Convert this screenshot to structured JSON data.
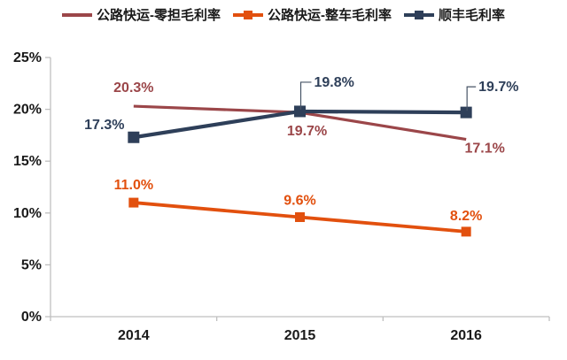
{
  "legend": {
    "items": [
      {
        "label": "公路快运-零担毛利率",
        "color": "#9B4649",
        "marker": "line"
      },
      {
        "label": "公路快运-整车毛利率",
        "color": "#E2500E",
        "marker": "square"
      },
      {
        "label": "顺丰毛利率",
        "color": "#2E3F59",
        "marker": "square"
      }
    ]
  },
  "chart_data": {
    "type": "line",
    "categories": [
      "2014",
      "2015",
      "2016"
    ],
    "series": [
      {
        "name": "公路快运-零担毛利率",
        "values": [
          20.3,
          19.7,
          17.1
        ],
        "point_labels": [
          "20.3%",
          "19.7%",
          "17.1%"
        ],
        "color": "#9B4649",
        "marker": "none"
      },
      {
        "name": "公路快运-整车毛利率",
        "values": [
          11.0,
          9.6,
          8.2
        ],
        "point_labels": [
          "11.0%",
          "9.6%",
          "8.2%"
        ],
        "color": "#E2500E",
        "marker": "square"
      },
      {
        "name": "顺丰毛利率",
        "values": [
          17.3,
          19.8,
          19.7
        ],
        "point_labels": [
          "17.3%",
          "19.8%",
          "19.7%"
        ],
        "color": "#2E3F59",
        "marker": "square"
      }
    ],
    "ylim": [
      0,
      25
    ],
    "yticks": [
      "0%",
      "5%",
      "10%",
      "15%",
      "20%",
      "25%"
    ],
    "xlabel": "",
    "ylabel": "",
    "title": "",
    "grid": false,
    "legend_position": "top",
    "axis_color": "#BFBFBF",
    "tick_text_color": "#1a1a1a",
    "leader_line_color": "#475466"
  }
}
